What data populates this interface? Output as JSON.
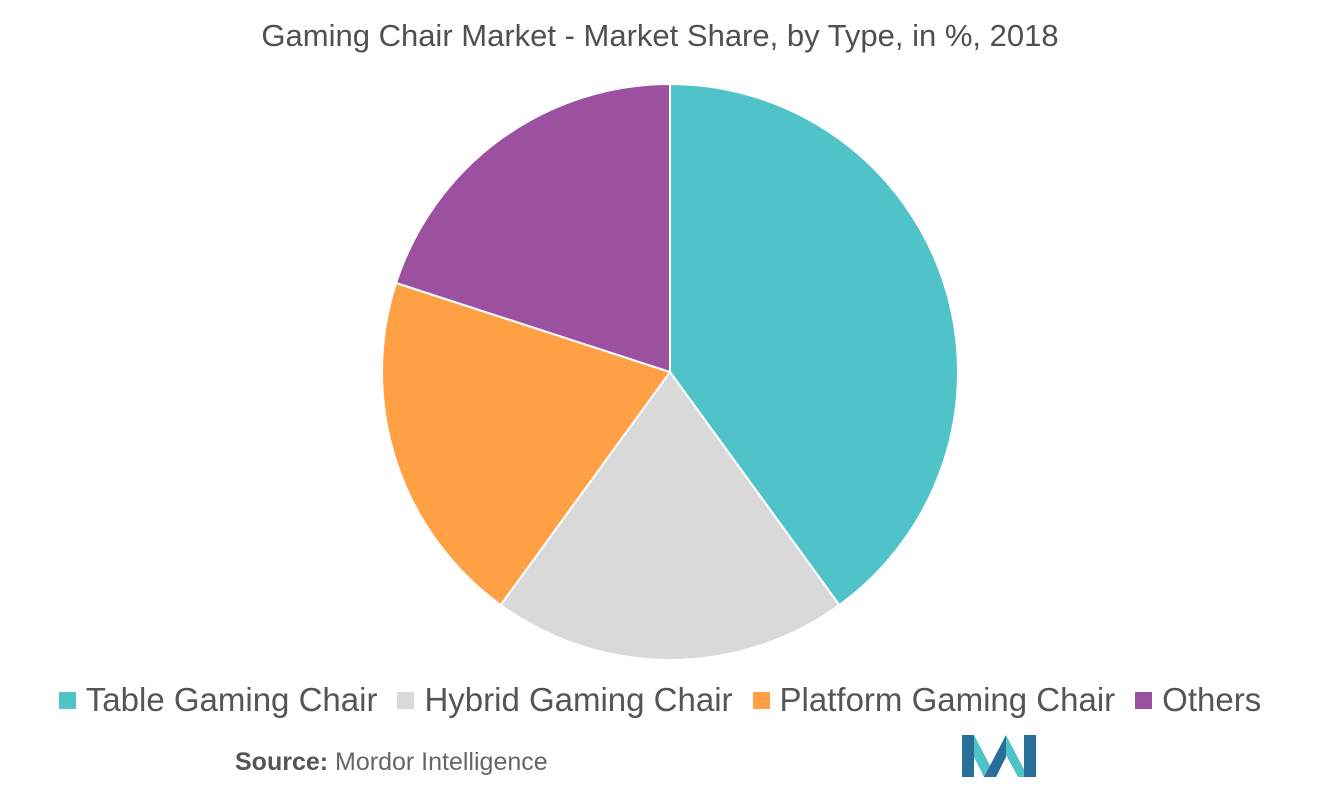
{
  "title": "Gaming Chair Market - Market Share, by Type, in %, 2018",
  "source": {
    "label": "Source:",
    "text": "Mordor Intelligence"
  },
  "logo": {
    "icon": "mordor-intelligence-logo",
    "colors": [
      "#2a6f97",
      "#4fc3c8"
    ]
  },
  "chart_data": {
    "type": "pie",
    "title": "Gaming Chair Market - Market Share, by Type, in %, 2018",
    "legend_position": "bottom",
    "start_angle_deg": 0,
    "direction": "clockwise",
    "categories": [
      "Table Gaming Chair",
      "Hybrid Gaming Chair",
      "Platform Gaming Chair",
      "Others"
    ],
    "values": [
      40,
      20,
      20,
      20
    ],
    "colors": [
      "#50c3c8",
      "#d9d9d9",
      "#ffa045",
      "#9b51a0"
    ]
  }
}
